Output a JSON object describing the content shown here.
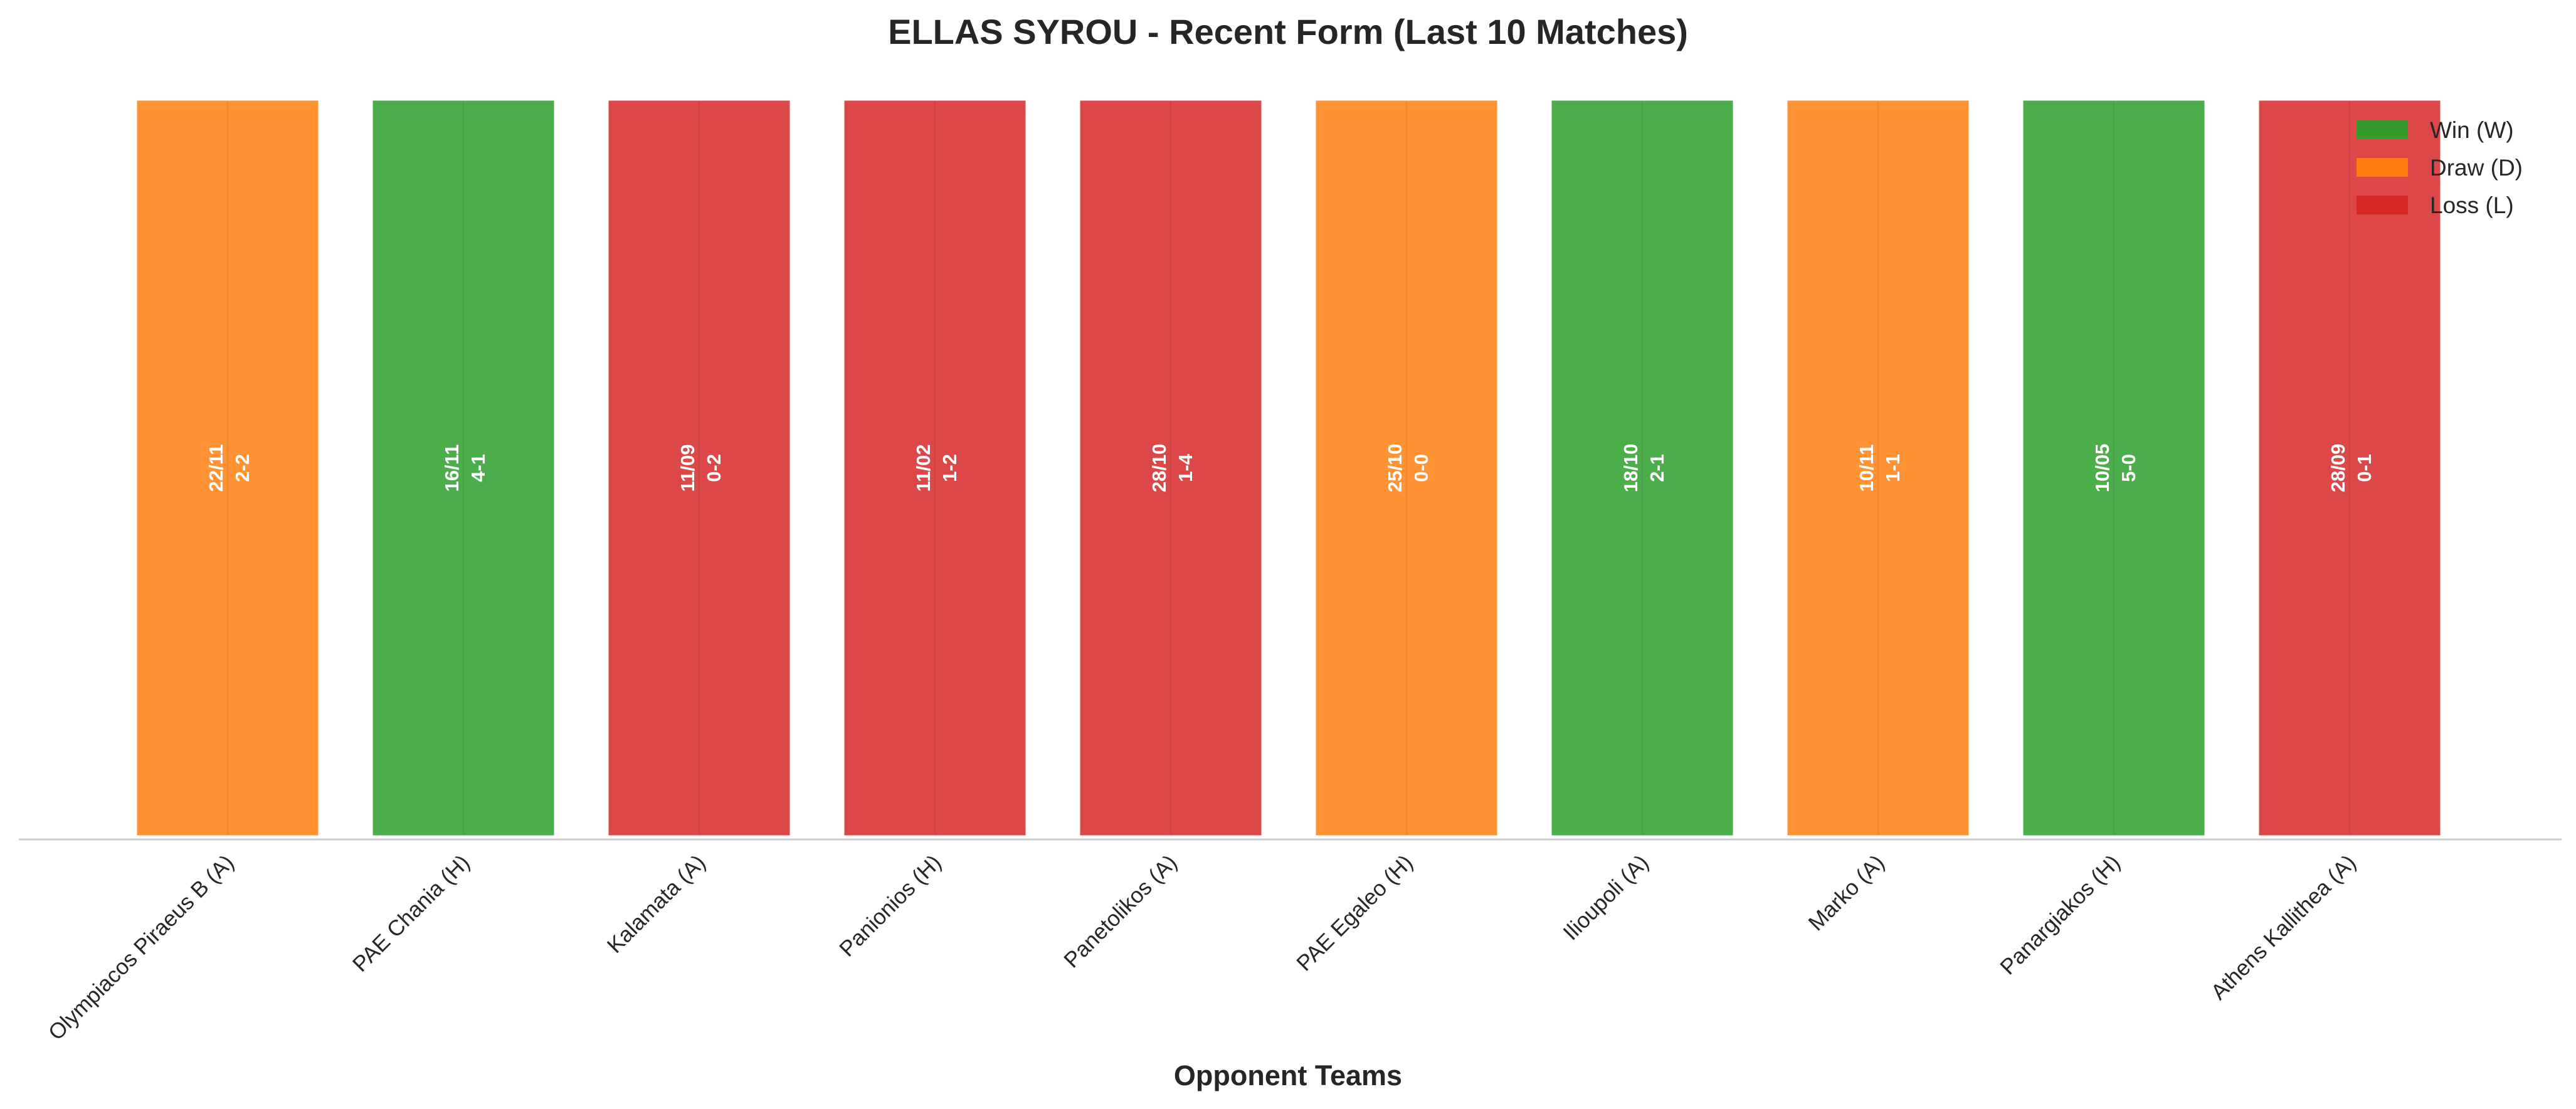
{
  "chart_data": {
    "type": "bar",
    "title": "ELLAS SYROU - Recent Form (Last 10 Matches)",
    "xlabel": "Opponent Teams",
    "ylabel": "",
    "ylim": [
      0,
      1
    ],
    "grid": false,
    "legend_position": "top-right",
    "categories": [
      "Olympiacos Piraeus B (A)",
      "PAE Chania (H)",
      "Kalamata (A)",
      "Panionios (H)",
      "Panetolikos (A)",
      "PAE Egaleo (H)",
      "Ilioupoli (A)",
      "Marko (A)",
      "Panargiakos (H)",
      "Athens Kallithea (A)"
    ],
    "values": [
      1,
      1,
      1,
      1,
      1,
      1,
      1,
      1,
      1,
      1
    ],
    "results": [
      "D",
      "W",
      "L",
      "L",
      "L",
      "D",
      "W",
      "D",
      "W",
      "L"
    ],
    "dates": [
      "22/11",
      "16/11",
      "11/09",
      "11/02",
      "28/10",
      "25/10",
      "18/10",
      "10/11",
      "10/05",
      "28/09"
    ],
    "scores": [
      "2-2",
      "4-1",
      "0-2",
      "1-2",
      "1-4",
      "0-0",
      "2-1",
      "1-1",
      "5-0",
      "0-1"
    ],
    "legend": [
      {
        "key": "W",
        "label": "Win (W)",
        "color": "#2ca02c"
      },
      {
        "key": "D",
        "label": "Draw (D)",
        "color": "#ff7f0e"
      },
      {
        "key": "L",
        "label": "Loss (L)",
        "color": "#d62728"
      }
    ]
  }
}
